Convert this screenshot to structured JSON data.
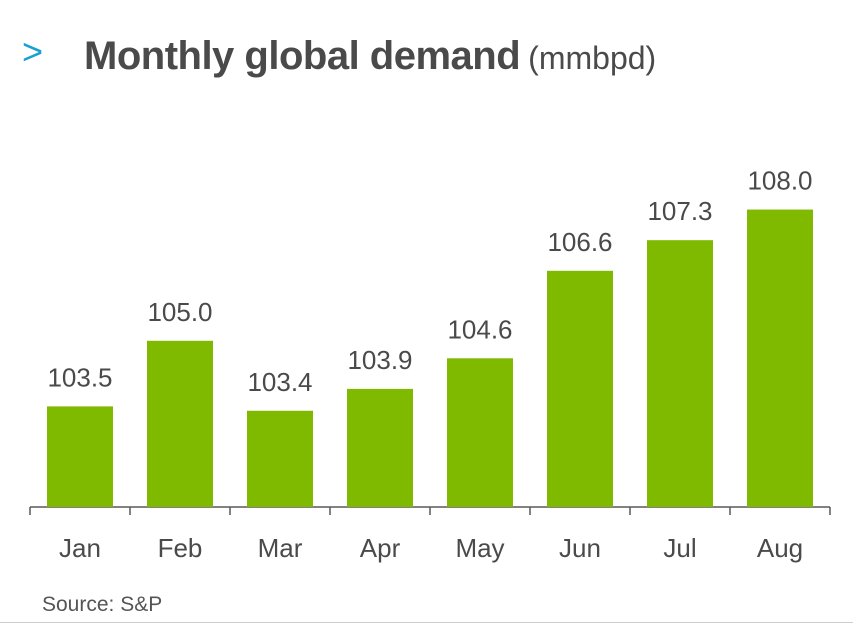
{
  "header": {
    "chevron": ">",
    "title": "Monthly global demand",
    "unit": "(mmbpd)"
  },
  "colors": {
    "bar": "#7fba00",
    "chevron": "#1a9fd4",
    "text": "#4a4a4a",
    "axis": "#595959"
  },
  "chart_data": {
    "type": "bar",
    "title": "Monthly global demand",
    "categories": [
      "Jan",
      "Feb",
      "Mar",
      "Apr",
      "May",
      "Jun",
      "Jul",
      "Aug"
    ],
    "values": [
      103.5,
      105.0,
      103.4,
      103.9,
      104.6,
      106.6,
      107.3,
      108.0
    ],
    "value_labels": [
      "103.5",
      "105.0",
      "103.4",
      "103.9",
      "104.6",
      "106.6",
      "107.3",
      "108.0"
    ],
    "xlabel": "",
    "ylabel": "",
    "ylim": [
      101.2,
      108.15
    ],
    "grid": false,
    "data_labels": true
  },
  "footer": {
    "source": "Source: S&P"
  }
}
